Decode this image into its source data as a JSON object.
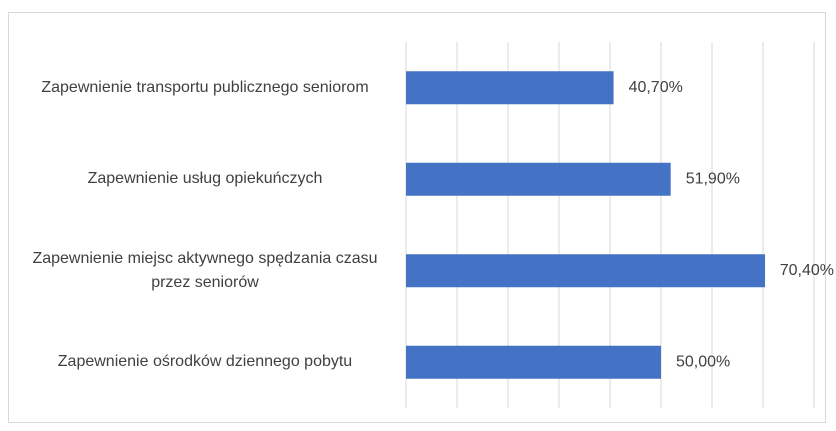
{
  "chart_data": {
    "type": "bar",
    "orientation": "horizontal",
    "categories": [
      "Zapewnienie transportu publicznego seniorom",
      "Zapewnienie usług opiekuńczych",
      "Zapewnienie miejsc aktywnego spędzania czasu przez seniorów",
      "Zapewnienie ośrodków dziennego pobytu"
    ],
    "values": [
      40.7,
      51.9,
      70.4,
      50.0
    ],
    "value_labels": [
      "40,70%",
      "51,90%",
      "70,40%",
      "50,00%"
    ],
    "color": "#4472c4",
    "xlim": [
      0,
      80
    ],
    "xticks": [
      0,
      10,
      20,
      30,
      40,
      50,
      60,
      70,
      80
    ],
    "grid": true
  }
}
